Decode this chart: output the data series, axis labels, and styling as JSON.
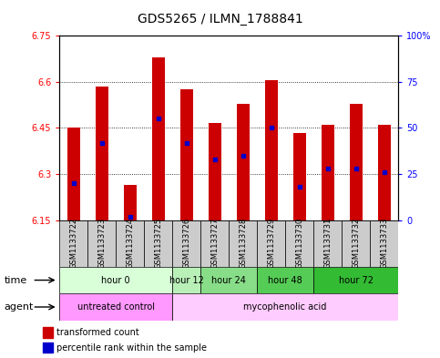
{
  "title": "GDS5265 / ILMN_1788841",
  "samples": [
    "GSM1133722",
    "GSM1133723",
    "GSM1133724",
    "GSM1133725",
    "GSM1133726",
    "GSM1133727",
    "GSM1133728",
    "GSM1133729",
    "GSM1133730",
    "GSM1133731",
    "GSM1133732",
    "GSM1133733"
  ],
  "bar_bottom": 6.15,
  "bar_tops": [
    6.45,
    6.585,
    6.265,
    6.68,
    6.575,
    6.465,
    6.53,
    6.605,
    6.435,
    6.46,
    6.53,
    6.46
  ],
  "percentile_vals": [
    20,
    42,
    2,
    55,
    42,
    33,
    35,
    50,
    18,
    28,
    28,
    26
  ],
  "ylim": [
    6.15,
    6.75
  ],
  "yticks_left": [
    6.15,
    6.3,
    6.45,
    6.6,
    6.75
  ],
  "yticks_right_vals": [
    0,
    25,
    50,
    75,
    100
  ],
  "yticks_right_labels": [
    "0",
    "25",
    "50",
    "75",
    "100%"
  ],
  "bar_color": "#CC0000",
  "percentile_color": "#0000CC",
  "time_groups": [
    {
      "label": "hour 0",
      "start": 0,
      "end": 4,
      "color": "#d8ffd8"
    },
    {
      "label": "hour 12",
      "start": 4,
      "end": 5,
      "color": "#b8f0b8"
    },
    {
      "label": "hour 24",
      "start": 5,
      "end": 7,
      "color": "#88dd88"
    },
    {
      "label": "hour 48",
      "start": 7,
      "end": 9,
      "color": "#55cc55"
    },
    {
      "label": "hour 72",
      "start": 9,
      "end": 12,
      "color": "#33bb33"
    }
  ],
  "agent_groups": [
    {
      "label": "untreated control",
      "start": 0,
      "end": 4,
      "color": "#ff99ff"
    },
    {
      "label": "mycophenolic acid",
      "start": 4,
      "end": 12,
      "color": "#ffccff"
    }
  ],
  "legend_red_label": "transformed count",
  "legend_blue_label": "percentile rank within the sample",
  "row_label_time": "time",
  "row_label_agent": "agent",
  "title_fontsize": 10,
  "tick_fontsize": 7,
  "label_fontsize": 8,
  "sample_fontsize": 6,
  "bar_width": 0.45
}
